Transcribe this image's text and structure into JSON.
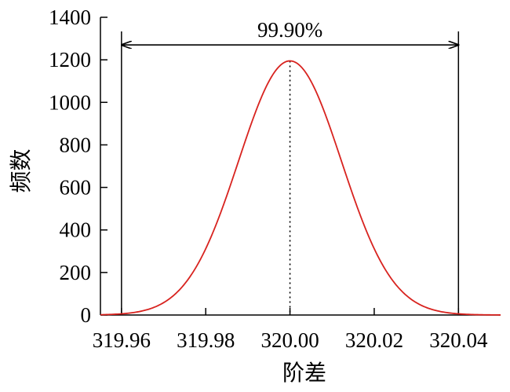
{
  "chart_data": {
    "type": "line",
    "title": "",
    "xlabel": "阶差",
    "ylabel": "频数",
    "xlim": [
      319.955,
      320.05
    ],
    "ylim": [
      0,
      1400
    ],
    "x_ticks": [
      319.96,
      319.98,
      320.0,
      320.02,
      320.04
    ],
    "x_tick_labels": [
      "319.96",
      "319.98",
      "320.00",
      "320.02",
      "320.04"
    ],
    "y_ticks": [
      0,
      200,
      400,
      600,
      800,
      1000,
      1200,
      1400
    ],
    "y_tick_labels": [
      "0",
      "200",
      "400",
      "600",
      "800",
      "1000",
      "1200",
      "1400"
    ],
    "grid": false,
    "series": [
      {
        "color": "#d8231f",
        "distribution": "normal",
        "mean": 320.0,
        "std": 0.0122,
        "peak": 1195,
        "x": [
          319.955,
          319.96,
          319.965,
          319.97,
          319.975,
          319.98,
          319.985,
          319.99,
          319.995,
          320.0,
          320.005,
          320.01,
          320.015,
          320.02,
          320.025,
          320.03,
          320.035,
          320.04,
          320.045,
          320.05
        ],
        "y": [
          4.5,
          5.0,
          20,
          57,
          147,
          313,
          558,
          836,
          1073,
          1195,
          1073,
          836,
          558,
          313,
          147,
          57,
          20,
          5.0,
          4.5,
          3
        ]
      }
    ],
    "annotations": {
      "coverage_label": "99.90%",
      "left_limit": 319.96,
      "right_limit": 320.04,
      "center_line_x": 320.0,
      "arrow_y_value": 1270
    }
  }
}
